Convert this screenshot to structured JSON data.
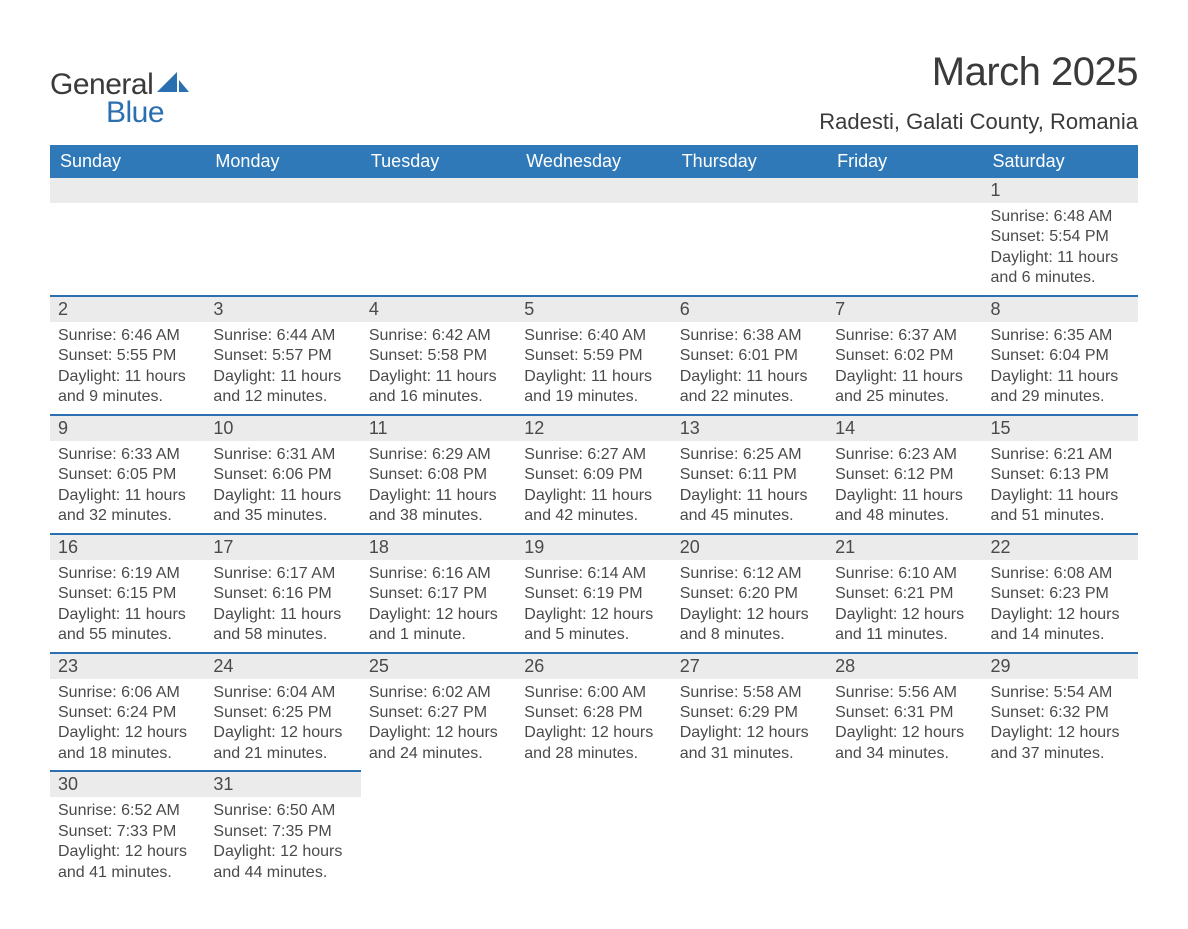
{
  "logo": {
    "word1": "General",
    "word2": "Blue",
    "shape_color": "#2a6fb0",
    "text_dark": "#3a3a3a"
  },
  "title": {
    "month_year": "March 2025",
    "location": "Radesti, Galati County, Romania"
  },
  "theme": {
    "header_bg": "#3079b8",
    "header_fg": "#ffffff",
    "row_divider": "#2a6fb0",
    "daynum_bg": "#ebebeb",
    "body_text": "#4a4a4a",
    "page_bg": "#ffffff",
    "font_family": "Arial, Helvetica, sans-serif",
    "month_title_size_pt": 30,
    "location_size_pt": 17,
    "header_cell_size_pt": 14,
    "daynum_size_pt": 14,
    "body_size_pt": 12
  },
  "calendar": {
    "type": "table",
    "columns": [
      "Sunday",
      "Monday",
      "Tuesday",
      "Wednesday",
      "Thursday",
      "Friday",
      "Saturday"
    ],
    "weeks": [
      [
        {
          "day": "",
          "lines": []
        },
        {
          "day": "",
          "lines": []
        },
        {
          "day": "",
          "lines": []
        },
        {
          "day": "",
          "lines": []
        },
        {
          "day": "",
          "lines": []
        },
        {
          "day": "",
          "lines": []
        },
        {
          "day": "1",
          "lines": [
            "Sunrise: 6:48 AM",
            "Sunset: 5:54 PM",
            "Daylight: 11 hours and 6 minutes."
          ]
        }
      ],
      [
        {
          "day": "2",
          "lines": [
            "Sunrise: 6:46 AM",
            "Sunset: 5:55 PM",
            "Daylight: 11 hours and 9 minutes."
          ]
        },
        {
          "day": "3",
          "lines": [
            "Sunrise: 6:44 AM",
            "Sunset: 5:57 PM",
            "Daylight: 11 hours and 12 minutes."
          ]
        },
        {
          "day": "4",
          "lines": [
            "Sunrise: 6:42 AM",
            "Sunset: 5:58 PM",
            "Daylight: 11 hours and 16 minutes."
          ]
        },
        {
          "day": "5",
          "lines": [
            "Sunrise: 6:40 AM",
            "Sunset: 5:59 PM",
            "Daylight: 11 hours and 19 minutes."
          ]
        },
        {
          "day": "6",
          "lines": [
            "Sunrise: 6:38 AM",
            "Sunset: 6:01 PM",
            "Daylight: 11 hours and 22 minutes."
          ]
        },
        {
          "day": "7",
          "lines": [
            "Sunrise: 6:37 AM",
            "Sunset: 6:02 PM",
            "Daylight: 11 hours and 25 minutes."
          ]
        },
        {
          "day": "8",
          "lines": [
            "Sunrise: 6:35 AM",
            "Sunset: 6:04 PM",
            "Daylight: 11 hours and 29 minutes."
          ]
        }
      ],
      [
        {
          "day": "9",
          "lines": [
            "Sunrise: 6:33 AM",
            "Sunset: 6:05 PM",
            "Daylight: 11 hours and 32 minutes."
          ]
        },
        {
          "day": "10",
          "lines": [
            "Sunrise: 6:31 AM",
            "Sunset: 6:06 PM",
            "Daylight: 11 hours and 35 minutes."
          ]
        },
        {
          "day": "11",
          "lines": [
            "Sunrise: 6:29 AM",
            "Sunset: 6:08 PM",
            "Daylight: 11 hours and 38 minutes."
          ]
        },
        {
          "day": "12",
          "lines": [
            "Sunrise: 6:27 AM",
            "Sunset: 6:09 PM",
            "Daylight: 11 hours and 42 minutes."
          ]
        },
        {
          "day": "13",
          "lines": [
            "Sunrise: 6:25 AM",
            "Sunset: 6:11 PM",
            "Daylight: 11 hours and 45 minutes."
          ]
        },
        {
          "day": "14",
          "lines": [
            "Sunrise: 6:23 AM",
            "Sunset: 6:12 PM",
            "Daylight: 11 hours and 48 minutes."
          ]
        },
        {
          "day": "15",
          "lines": [
            "Sunrise: 6:21 AM",
            "Sunset: 6:13 PM",
            "Daylight: 11 hours and 51 minutes."
          ]
        }
      ],
      [
        {
          "day": "16",
          "lines": [
            "Sunrise: 6:19 AM",
            "Sunset: 6:15 PM",
            "Daylight: 11 hours and 55 minutes."
          ]
        },
        {
          "day": "17",
          "lines": [
            "Sunrise: 6:17 AM",
            "Sunset: 6:16 PM",
            "Daylight: 11 hours and 58 minutes."
          ]
        },
        {
          "day": "18",
          "lines": [
            "Sunrise: 6:16 AM",
            "Sunset: 6:17 PM",
            "Daylight: 12 hours and 1 minute."
          ]
        },
        {
          "day": "19",
          "lines": [
            "Sunrise: 6:14 AM",
            "Sunset: 6:19 PM",
            "Daylight: 12 hours and 5 minutes."
          ]
        },
        {
          "day": "20",
          "lines": [
            "Sunrise: 6:12 AM",
            "Sunset: 6:20 PM",
            "Daylight: 12 hours and 8 minutes."
          ]
        },
        {
          "day": "21",
          "lines": [
            "Sunrise: 6:10 AM",
            "Sunset: 6:21 PM",
            "Daylight: 12 hours and 11 minutes."
          ]
        },
        {
          "day": "22",
          "lines": [
            "Sunrise: 6:08 AM",
            "Sunset: 6:23 PM",
            "Daylight: 12 hours and 14 minutes."
          ]
        }
      ],
      [
        {
          "day": "23",
          "lines": [
            "Sunrise: 6:06 AM",
            "Sunset: 6:24 PM",
            "Daylight: 12 hours and 18 minutes."
          ]
        },
        {
          "day": "24",
          "lines": [
            "Sunrise: 6:04 AM",
            "Sunset: 6:25 PM",
            "Daylight: 12 hours and 21 minutes."
          ]
        },
        {
          "day": "25",
          "lines": [
            "Sunrise: 6:02 AM",
            "Sunset: 6:27 PM",
            "Daylight: 12 hours and 24 minutes."
          ]
        },
        {
          "day": "26",
          "lines": [
            "Sunrise: 6:00 AM",
            "Sunset: 6:28 PM",
            "Daylight: 12 hours and 28 minutes."
          ]
        },
        {
          "day": "27",
          "lines": [
            "Sunrise: 5:58 AM",
            "Sunset: 6:29 PM",
            "Daylight: 12 hours and 31 minutes."
          ]
        },
        {
          "day": "28",
          "lines": [
            "Sunrise: 5:56 AM",
            "Sunset: 6:31 PM",
            "Daylight: 12 hours and 34 minutes."
          ]
        },
        {
          "day": "29",
          "lines": [
            "Sunrise: 5:54 AM",
            "Sunset: 6:32 PM",
            "Daylight: 12 hours and 37 minutes."
          ]
        }
      ],
      [
        {
          "day": "30",
          "lines": [
            "Sunrise: 6:52 AM",
            "Sunset: 7:33 PM",
            "Daylight: 12 hours and 41 minutes."
          ]
        },
        {
          "day": "31",
          "lines": [
            "Sunrise: 6:50 AM",
            "Sunset: 7:35 PM",
            "Daylight: 12 hours and 44 minutes."
          ]
        },
        {
          "day": "",
          "lines": []
        },
        {
          "day": "",
          "lines": []
        },
        {
          "day": "",
          "lines": []
        },
        {
          "day": "",
          "lines": []
        },
        {
          "day": "",
          "lines": []
        }
      ]
    ]
  }
}
